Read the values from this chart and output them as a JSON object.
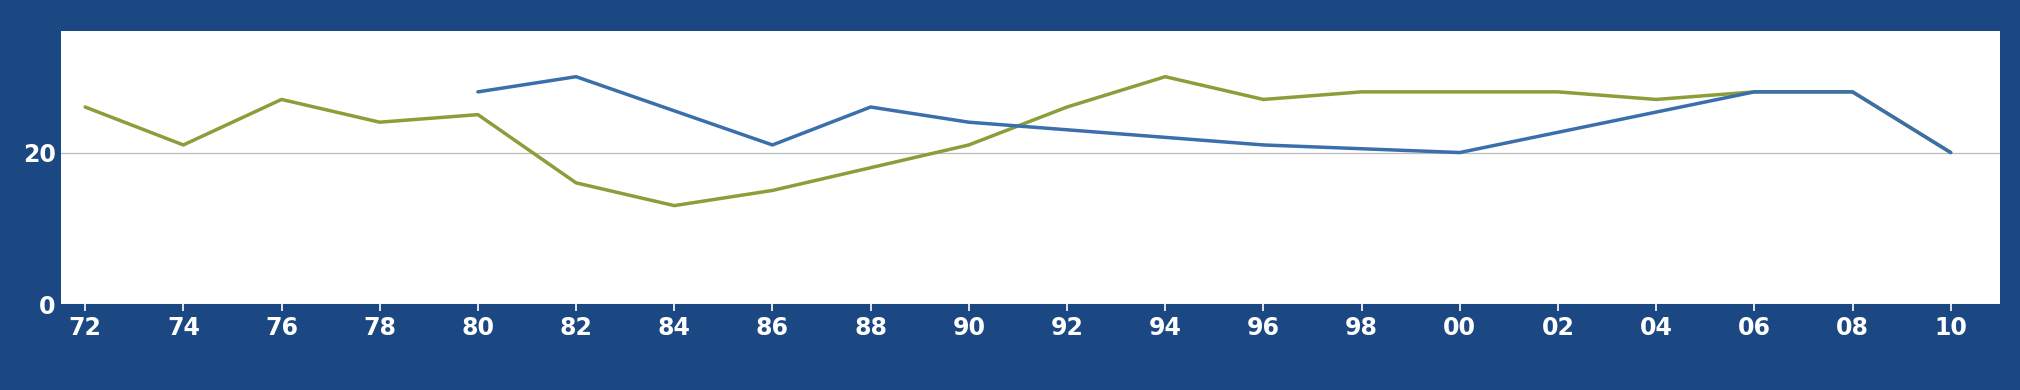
{
  "green_data_x": [
    1972,
    1974,
    1976,
    1978,
    1980,
    1982,
    1984,
    1986,
    1988,
    1990,
    1992,
    1994,
    1996,
    1998,
    2000,
    2002,
    2004,
    2006,
    2008,
    2010
  ],
  "green_data_y": [
    26,
    21,
    27,
    24,
    25,
    16,
    13,
    15,
    18,
    21,
    26,
    30,
    27,
    28,
    28,
    28,
    27,
    28,
    28,
    20
  ],
  "blue_data_x": [
    1980,
    1982,
    1986,
    1988,
    1990,
    1996,
    2000,
    2006,
    2008,
    2010
  ],
  "blue_data_y": [
    28,
    30,
    21,
    26,
    24,
    21,
    20,
    28,
    28,
    20
  ],
  "blue_color": "#3B6FAB",
  "green_color": "#8B9E3A",
  "background_color": "#1B4882",
  "plot_bg_color": "#FFFFFF",
  "gridline_color": "#BBBBBB",
  "tick_label_color": "#FFFFFF",
  "ytick_values": [
    0,
    20
  ],
  "ytick_labels": [
    "0",
    "20"
  ],
  "ylim": [
    0,
    36
  ],
  "xlim_min": 1971.5,
  "xlim_max": 2011.0,
  "x_ticks": [
    1972,
    1974,
    1976,
    1978,
    1980,
    1982,
    1984,
    1986,
    1988,
    1990,
    1992,
    1994,
    1996,
    1998,
    2000,
    2002,
    2004,
    2006,
    2008,
    2010
  ],
  "x_labels": [
    "72",
    "74",
    "76",
    "78",
    "80",
    "82",
    "84",
    "86",
    "88",
    "90",
    "92",
    "94",
    "96",
    "98",
    "00",
    "02",
    "04",
    "06",
    "08",
    "10"
  ],
  "line_width": 2.5
}
